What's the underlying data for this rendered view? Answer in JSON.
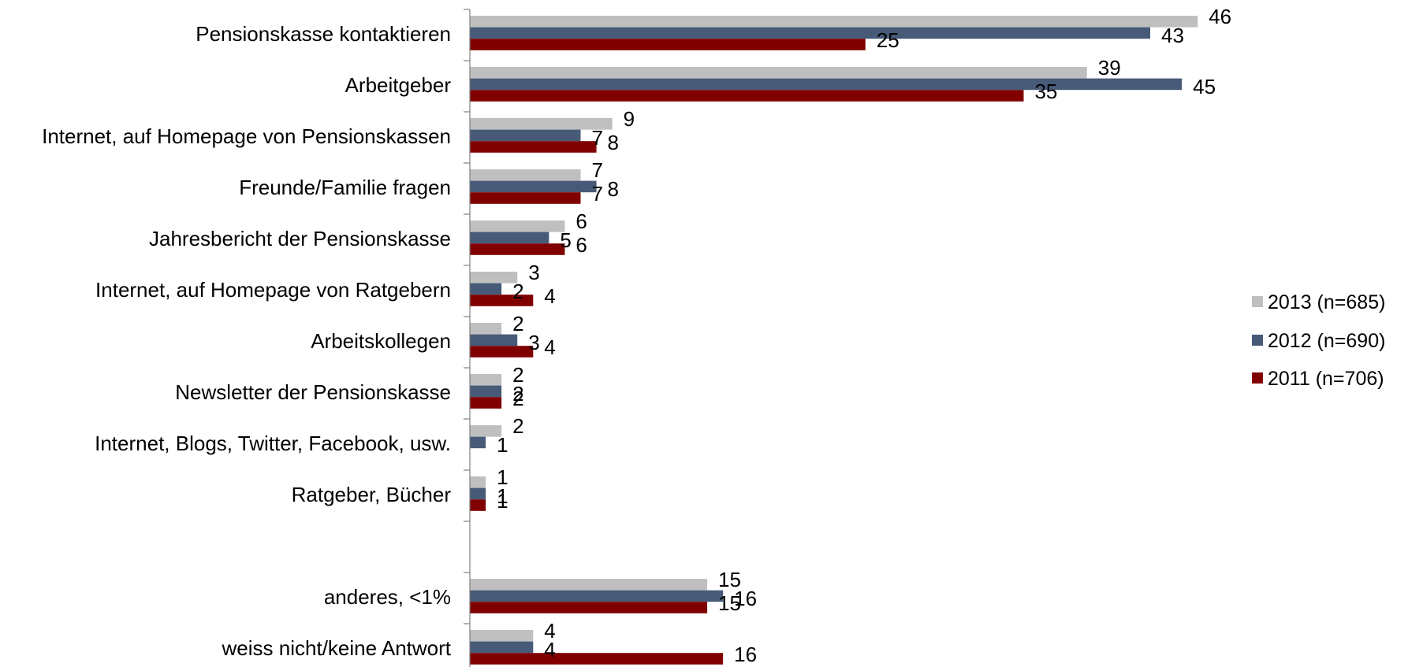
{
  "chart_data": {
    "type": "bar",
    "orientation": "horizontal",
    "title": "",
    "xlabel": "",
    "ylabel": "",
    "legend_position": "right",
    "grid": false,
    "categories": [
      "Pensionskasse kontaktieren",
      "Arbeitgeber",
      "Internet, auf Homepage von Pensionskassen",
      "Freunde/Familie fragen",
      "Jahresbericht der Pensionskasse",
      "Internet, auf Homepage von Ratgebern",
      "Arbeitskollegen",
      "Newsletter der Pensionskasse",
      "Internet, Blogs, Twitter, Facebook, usw.",
      "Ratgeber, Bücher",
      "",
      "anderes, <1%",
      "weiss nicht/keine Antwort"
    ],
    "series": [
      {
        "name": "2013 (n=685)",
        "color": "#bfbfbf",
        "values": [
          46,
          39,
          9,
          7,
          6,
          3,
          2,
          2,
          2,
          1,
          null,
          15,
          4
        ]
      },
      {
        "name": "2012 (n=690)",
        "color": "#475a78",
        "values": [
          43,
          45,
          7,
          8,
          5,
          2,
          3,
          2,
          1,
          1,
          null,
          16,
          4
        ]
      },
      {
        "name": "2011 (n=706)",
        "color": "#800000",
        "values": [
          25,
          35,
          8,
          7,
          6,
          4,
          4,
          2,
          null,
          1,
          null,
          15,
          16
        ]
      }
    ],
    "xlim": [
      0,
      57
    ]
  }
}
